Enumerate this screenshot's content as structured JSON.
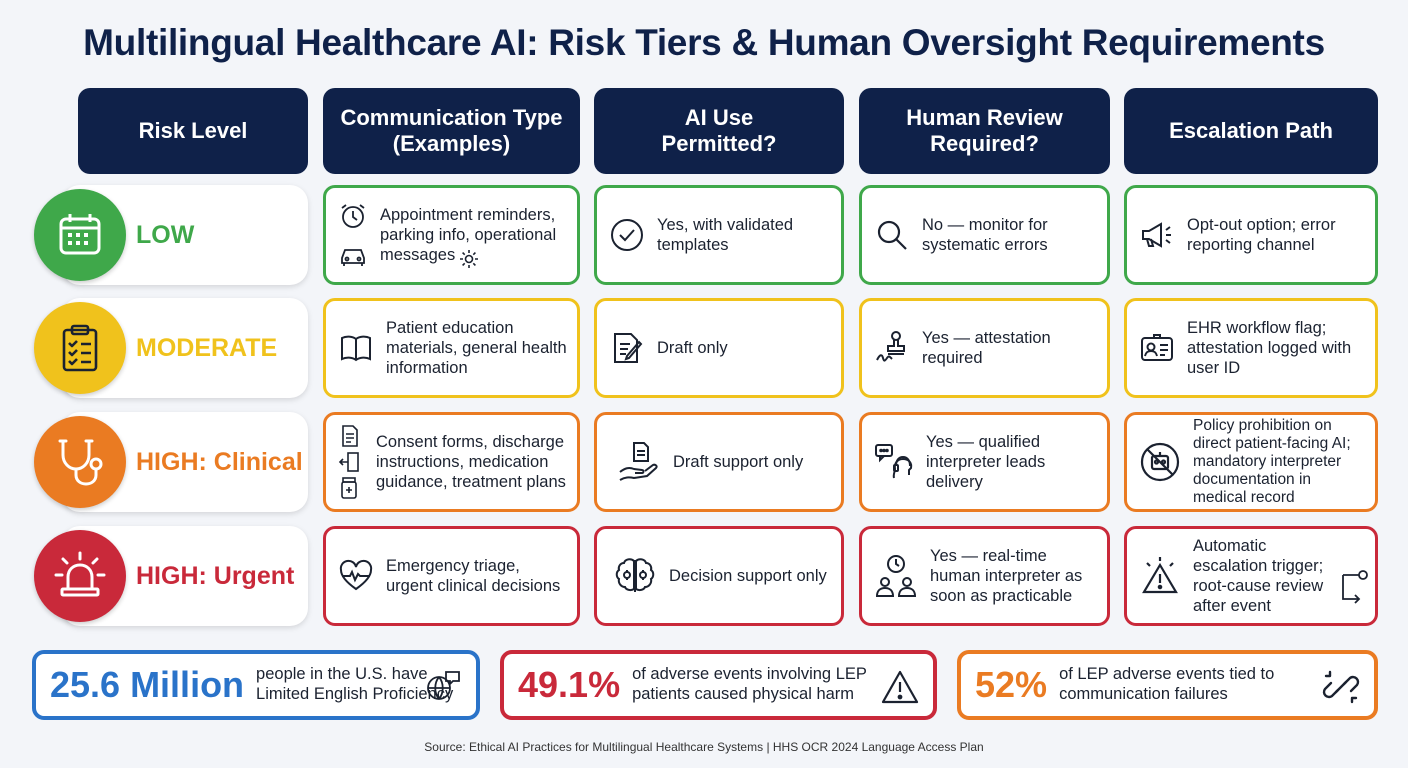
{
  "title": "Multilingual Healthcare AI: Risk Tiers & Human Oversight Requirements",
  "headers": [
    "Risk Level",
    "Communication Type (Examples)",
    "AI Use Permitted?",
    "Human Review Required?",
    "Escalation Path"
  ],
  "colors": {
    "low": "#3fa84a",
    "moderate": "#f0c21c",
    "clinical": "#ea7b22",
    "urgent": "#c9293a",
    "header": "#0f2149",
    "stat_blue": "#2a73c9"
  },
  "rows": [
    {
      "level": "LOW",
      "level_icon": "calendar-icon",
      "communication": "Appointment reminders, parking info, operational messages",
      "communication_icons": [
        "alarm-clock-icon",
        "car-icon",
        "gear-icon"
      ],
      "ai_use": "Yes, with validated templates",
      "ai_use_icon": "check-circle-icon",
      "review": "No — monitor for systematic errors",
      "review_icon": "magnifier-icon",
      "escalation": "Opt-out option; error reporting channel",
      "escalation_icon": "megaphone-icon"
    },
    {
      "level": "MODERATE",
      "level_icon": "clipboard-checklist-icon",
      "communication": "Patient education materials, general health information",
      "communication_icons": [
        "open-book-icon"
      ],
      "ai_use": "Draft only",
      "ai_use_icon": "document-pen-icon",
      "review": "Yes — attestation required",
      "review_icon": "stamp-signature-icon",
      "escalation": "EHR workflow flag; attestation logged with user ID",
      "escalation_icon": "id-card-icon"
    },
    {
      "level": "HIGH: Clinical",
      "level_icon": "stethoscope-icon",
      "communication": "Consent forms, discharge instructions, medication guidance, treatment plans",
      "communication_icons": [
        "document-icon",
        "exit-door-icon",
        "pill-bottle-icon"
      ],
      "ai_use": "Draft support only",
      "ai_use_icon": "hand-document-icon",
      "review": "Yes — qualified interpreter leads delivery",
      "review_icon": "interpreter-headset-icon",
      "escalation": "Policy prohibition on direct patient-facing AI; mandatory interpreter documentation in medical record",
      "escalation_icon": "no-robot-icon"
    },
    {
      "level": "HIGH: Urgent",
      "level_icon": "siren-icon",
      "communication": "Emergency triage, urgent clinical decisions",
      "communication_icons": [
        "heartbeat-icon"
      ],
      "ai_use": "Decision support only",
      "ai_use_icon": "brain-gear-icon",
      "review": "Yes — real-time human interpreter as soon as practicable",
      "review_icon": "clock-people-icon",
      "escalation": "Automatic escalation trigger; root-cause review after event",
      "escalation_icon": "warning-triangle-icon"
    }
  ],
  "stats": [
    {
      "number": "25.6 Million",
      "text": "people in the U.S. have Limited English Proficiency",
      "icon": "globe-speech-icon"
    },
    {
      "number": "49.1%",
      "text": "of adverse events involving LEP patients caused physical harm",
      "icon": "warning-triangle-icon"
    },
    {
      "number": "52%",
      "text": "of LEP adverse events tied to communication failures",
      "icon": "broken-link-icon"
    }
  ],
  "source": "Source: Ethical AI Practices for Multilingual Healthcare Systems | HHS OCR 2024 Language Access Plan"
}
